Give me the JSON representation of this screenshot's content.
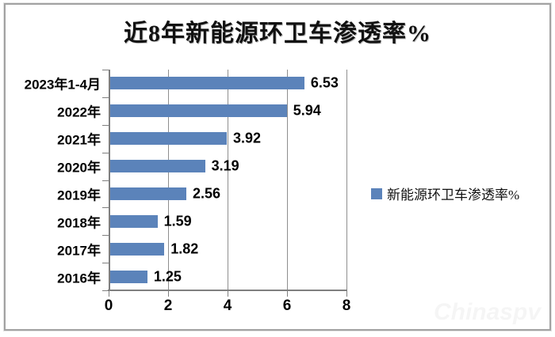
{
  "watermark": "Chinaspv",
  "chart_data": {
    "type": "bar",
    "orientation": "horizontal",
    "title": "近8年新能源环卫车渗透率%",
    "categories": [
      "2023年1-4月",
      "2022年",
      "2021年",
      "2020年",
      "2019年",
      "2018年",
      "2017年",
      "2016年"
    ],
    "values": [
      6.53,
      5.94,
      3.92,
      3.19,
      2.56,
      1.59,
      1.82,
      1.25
    ],
    "value_labels": [
      "6.53",
      "5.94",
      "3.92",
      "3.19",
      "2.56",
      "1.59",
      "1.82",
      "1.25"
    ],
    "xlabel": "",
    "ylabel": "",
    "xlim": [
      0,
      8
    ],
    "xticks": [
      0,
      2,
      4,
      6,
      8
    ],
    "grid": true,
    "legend": {
      "label": "新能源环卫车渗透率%",
      "position": "right"
    },
    "colors": {
      "bar": "#5b83ba",
      "axis": "#7f7f7f",
      "gridline": "#8f8f8f",
      "text": "#000000"
    }
  }
}
